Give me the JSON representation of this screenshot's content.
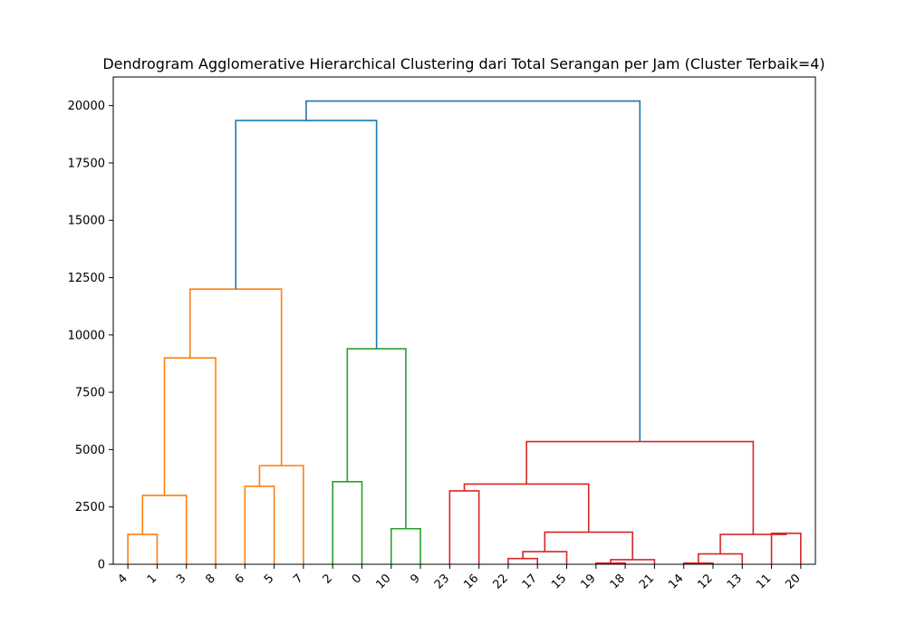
{
  "chart_data": {
    "type": "dendrogram",
    "title": "Dendrogram Agglomerative Hierarchical Clustering dari Total Serangan per Jam (Cluster Terbaik=4)",
    "xlabel": "",
    "ylabel": "",
    "ylim": [
      0,
      21250
    ],
    "y_ticks": [
      0,
      2500,
      5000,
      7500,
      10000,
      12500,
      15000,
      17500,
      20000
    ],
    "y_tick_labels": [
      "0",
      "2500",
      "5000",
      "7500",
      "10000",
      "12500",
      "15000",
      "17500",
      "20000"
    ],
    "leaf_order": [
      "4",
      "1",
      "3",
      "8",
      "6",
      "5",
      "7",
      "2",
      "0",
      "10",
      "9",
      "23",
      "16",
      "22",
      "17",
      "15",
      "19",
      "18",
      "21",
      "14",
      "12",
      "13",
      "11",
      "20"
    ],
    "colors": {
      "orange": "#ff7f0e",
      "green": "#2ca02c",
      "red": "#d62728",
      "blue": "#1f77b4"
    },
    "merges": [
      {
        "left": "L0",
        "right": "L1",
        "height": 1300,
        "color": "orange"
      },
      {
        "left": "M0",
        "right": "L2",
        "height": 3000,
        "color": "orange"
      },
      {
        "left": "M1",
        "right": "L3",
        "height": 9000,
        "color": "orange"
      },
      {
        "left": "L4",
        "right": "L5",
        "height": 3400,
        "color": "orange"
      },
      {
        "left": "M3",
        "right": "L6",
        "height": 4300,
        "color": "orange"
      },
      {
        "left": "M2",
        "right": "M4",
        "height": 12000,
        "color": "orange"
      },
      {
        "left": "L7",
        "right": "L8",
        "height": 3600,
        "color": "green"
      },
      {
        "left": "L9",
        "right": "L10",
        "height": 1550,
        "color": "green"
      },
      {
        "left": "M6",
        "right": "M7",
        "height": 9400,
        "color": "green"
      },
      {
        "left": "L11",
        "right": "L12",
        "height": 3200,
        "color": "red"
      },
      {
        "left": "L13",
        "right": "L14",
        "height": 250,
        "color": "red"
      },
      {
        "left": "M10",
        "right": "L15",
        "height": 550,
        "color": "red"
      },
      {
        "left": "L16",
        "right": "L17",
        "height": 50,
        "color": "red"
      },
      {
        "left": "M12",
        "right": "L18",
        "height": 200,
        "color": "red"
      },
      {
        "left": "M11",
        "right": "M13",
        "height": 1400,
        "color": "red"
      },
      {
        "left": "M9",
        "right": "M14",
        "height": 3500,
        "color": "red"
      },
      {
        "left": "L19",
        "right": "L20",
        "height": 50,
        "color": "red"
      },
      {
        "left": "M16",
        "right": "L21",
        "height": 450,
        "color": "red"
      },
      {
        "left": "L22",
        "right": "L23",
        "height": 1350,
        "color": "red"
      },
      {
        "left": "M17",
        "right": "M18",
        "height": 1300,
        "color": "red"
      },
      {
        "left": "M15",
        "right": "M19",
        "height": 5350,
        "color": "red"
      },
      {
        "left": "M5",
        "right": "M8",
        "height": 19350,
        "color": "blue"
      },
      {
        "left": "M21",
        "right": "M20",
        "height": 20200,
        "color": "blue"
      }
    ]
  }
}
